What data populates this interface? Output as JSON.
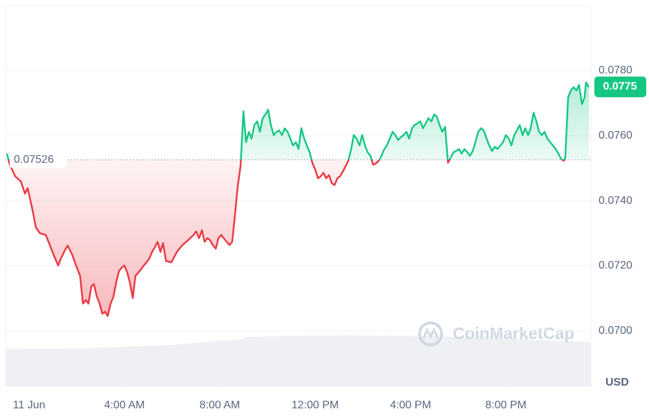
{
  "chart_data": {
    "type": "line",
    "x": [
      -0.93,
      -0.81,
      -0.58,
      -0.35,
      -0.17,
      -0.06,
      0.12,
      0.29,
      0.46,
      0.7,
      0.87,
      1.04,
      1.22,
      1.33,
      1.51,
      1.62,
      1.8,
      1.97,
      2.14,
      2.26,
      2.38,
      2.49,
      2.61,
      2.72,
      2.84,
      2.96,
      3.07,
      3.19,
      3.3,
      3.42,
      3.54,
      3.65,
      3.77,
      3.88,
      4.0,
      4.12,
      4.23,
      4.35,
      4.46,
      4.58,
      4.7,
      4.81,
      4.93,
      5.04,
      5.16,
      5.28,
      5.39,
      5.51,
      5.62,
      5.74,
      5.97,
      6.2,
      6.43,
      6.67,
      6.9,
      7.01,
      7.13,
      7.25,
      7.36,
      7.48,
      7.59,
      7.71,
      7.83,
      7.94,
      8.06,
      8.23,
      8.41,
      8.52,
      8.64,
      8.75,
      8.87,
      8.99,
      9.1,
      9.22,
      9.33,
      9.45,
      9.57,
      9.68,
      9.8,
      9.91,
      10.03,
      10.14,
      10.26,
      10.38,
      10.49,
      10.61,
      10.72,
      10.84,
      10.96,
      11.07,
      11.19,
      11.3,
      11.42,
      11.54,
      11.65,
      11.77,
      11.88,
      12.0,
      12.12,
      12.23,
      12.35,
      12.46,
      12.58,
      12.7,
      12.81,
      12.93,
      13.04,
      13.16,
      13.28,
      13.39,
      13.51,
      13.62,
      13.74,
      13.86,
      13.97,
      14.09,
      14.2,
      14.32,
      14.43,
      14.55,
      14.67,
      14.78,
      14.9,
      15.01,
      15.13,
      15.25,
      15.36,
      15.48,
      15.59,
      15.71,
      15.83,
      15.94,
      16.06,
      16.17,
      16.29,
      16.41,
      16.52,
      16.64,
      16.75,
      16.87,
      16.99,
      17.1,
      17.22,
      17.33,
      17.45,
      17.57,
      17.68,
      17.8,
      17.91,
      18.03,
      18.14,
      18.26,
      18.38,
      18.49,
      18.61,
      18.72,
      18.84,
      18.96,
      19.07,
      19.19,
      19.3,
      19.42,
      19.54,
      19.65,
      19.77,
      19.88,
      20.0,
      20.12,
      20.23,
      20.35,
      20.46,
      20.58,
      20.7,
      20.81,
      20.93,
      21.04,
      21.16,
      21.28,
      21.39,
      21.51,
      21.62,
      21.74,
      21.86,
      21.97,
      22.09,
      22.2,
      22.32,
      22.43,
      22.49,
      22.61,
      22.72,
      22.84,
      22.96,
      23.07,
      23.19,
      23.3,
      23.36,
      23.48
    ],
    "series": [
      {
        "up_color": "#16c784",
        "down_color": "#ea3943",
        "values": [
          0.07545,
          0.07511,
          0.07475,
          0.0746,
          0.07422,
          0.07439,
          0.0738,
          0.07317,
          0.073,
          0.07295,
          0.07264,
          0.07232,
          0.07201,
          0.07222,
          0.07249,
          0.07262,
          0.07236,
          0.07201,
          0.07169,
          0.07084,
          0.07095,
          0.07084,
          0.07137,
          0.07144,
          0.07106,
          0.07084,
          0.07053,
          0.07059,
          0.07046,
          0.07084,
          0.07106,
          0.07148,
          0.07184,
          0.07194,
          0.07201,
          0.07179,
          0.07148,
          0.07101,
          0.07169,
          0.07179,
          0.0719,
          0.07201,
          0.07211,
          0.07222,
          0.07243,
          0.07258,
          0.07274,
          0.07243,
          0.0727,
          0.07215,
          0.07211,
          0.07243,
          0.07264,
          0.07279,
          0.07295,
          0.07306,
          0.07285,
          0.0731,
          0.07274,
          0.07285,
          0.07279,
          0.07264,
          0.07253,
          0.07285,
          0.07295,
          0.07279,
          0.07264,
          0.07274,
          0.07359,
          0.07443,
          0.07507,
          0.07675,
          0.0758,
          0.07612,
          0.07591,
          0.07633,
          0.07644,
          0.07612,
          0.07654,
          0.07665,
          0.0768,
          0.07633,
          0.07602,
          0.07612,
          0.07616,
          0.07602,
          0.07623,
          0.07612,
          0.07591,
          0.0757,
          0.0758,
          0.07559,
          0.07623,
          0.07591,
          0.0757,
          0.07549,
          0.07517,
          0.07496,
          0.07469,
          0.07475,
          0.07486,
          0.07469,
          0.07479,
          0.07454,
          0.07448,
          0.07469,
          0.07475,
          0.0749,
          0.07507,
          0.07523,
          0.07559,
          0.07602,
          0.07591,
          0.0757,
          0.07602,
          0.0757,
          0.07549,
          0.07538,
          0.07511,
          0.07515,
          0.07523,
          0.07538,
          0.07559,
          0.0757,
          0.07591,
          0.07612,
          0.07602,
          0.07587,
          0.07595,
          0.07602,
          0.07612,
          0.07591,
          0.07623,
          0.07633,
          0.07638,
          0.07644,
          0.07623,
          0.07638,
          0.07654,
          0.07644,
          0.07665,
          0.07659,
          0.07633,
          0.07612,
          0.07627,
          0.07517,
          0.07532,
          0.07549,
          0.07553,
          0.07559,
          0.07545,
          0.07559,
          0.07549,
          0.07538,
          0.07553,
          0.0758,
          0.07612,
          0.07623,
          0.07616,
          0.07591,
          0.0757,
          0.07553,
          0.07566,
          0.07559,
          0.0757,
          0.0758,
          0.07602,
          0.07591,
          0.0757,
          0.07602,
          0.07616,
          0.07633,
          0.07602,
          0.07623,
          0.07602,
          0.07623,
          0.07671,
          0.07644,
          0.07612,
          0.07602,
          0.07612,
          0.07591,
          0.0758,
          0.0757,
          0.07559,
          0.07545,
          0.07528,
          0.07523,
          0.07532,
          0.07718,
          0.07739,
          0.07749,
          0.07739,
          0.07756,
          0.07697,
          0.07718,
          0.07764,
          0.07749
        ]
      }
    ],
    "baseline": 0.07526,
    "last_price": 0.0775,
    "unit": "USD",
    "watermark": "CoinMarketCap",
    "xlim": [
      -0.93,
      23.48
    ],
    "ylim": [
      0.0683,
      0.08
    ],
    "xticks": [
      {
        "value": 0,
        "label": "11 Jun"
      },
      {
        "value": 4,
        "label": "4:00 AM"
      },
      {
        "value": 8,
        "label": "8:00 AM"
      },
      {
        "value": 12,
        "label": "12:00 PM"
      },
      {
        "value": 16,
        "label": "4:00 PM"
      },
      {
        "value": 20,
        "label": "8:00 PM"
      }
    ],
    "yticks": [
      {
        "value": 0.07,
        "label": "0.0700"
      },
      {
        "value": 0.072,
        "label": "0.0720"
      },
      {
        "value": 0.074,
        "label": "0.0740"
      },
      {
        "value": 0.076,
        "label": "0.0760"
      },
      {
        "value": 0.078,
        "label": "0.0780"
      }
    ],
    "grid": true
  }
}
